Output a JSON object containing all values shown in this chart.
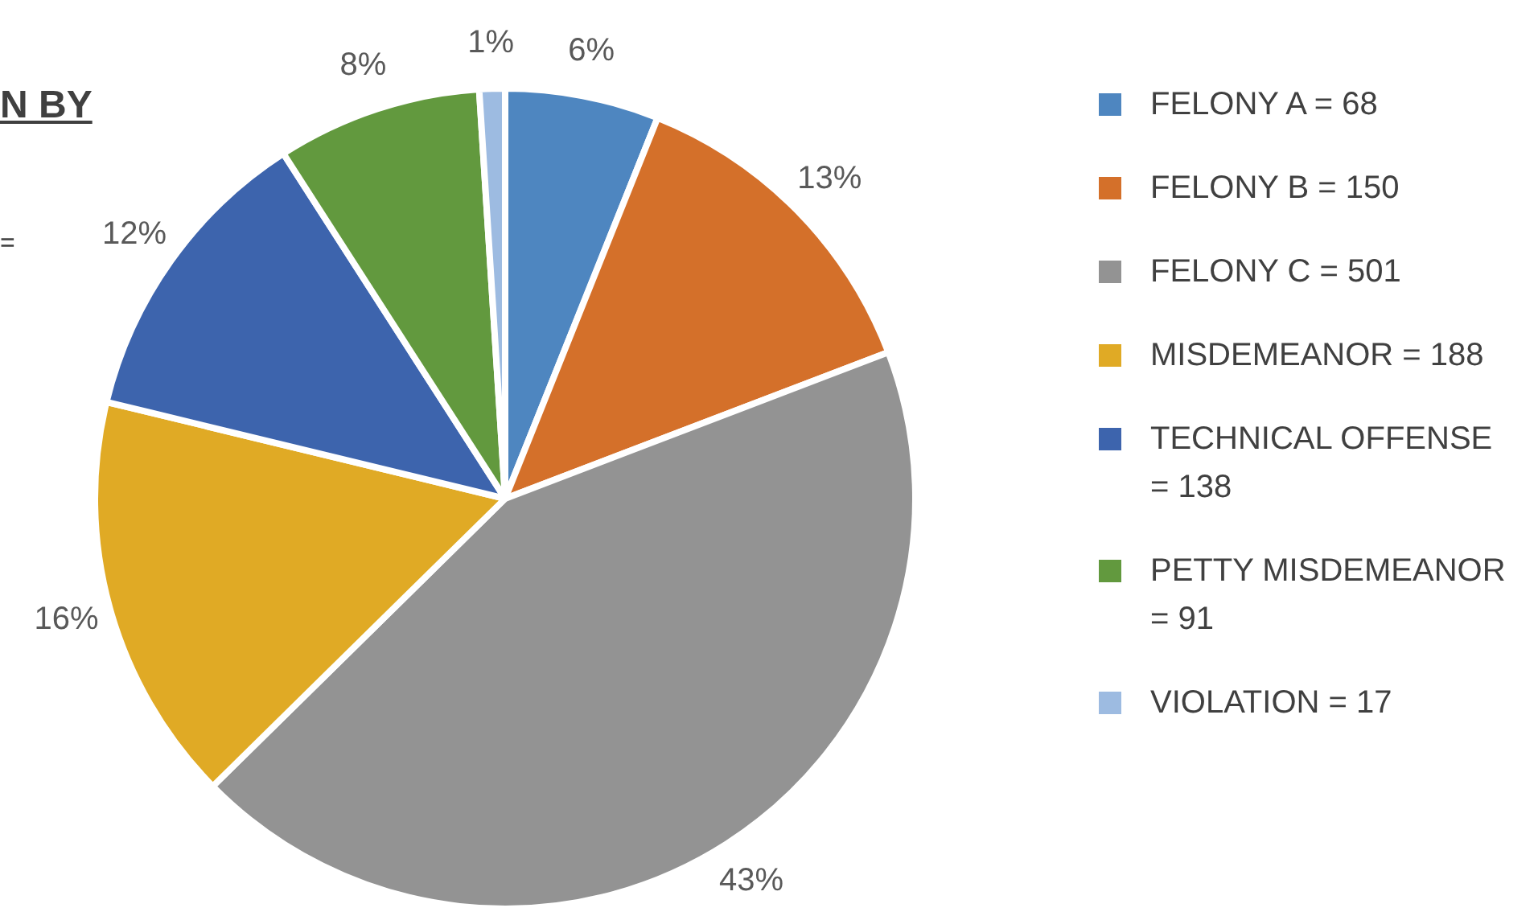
{
  "chart_data": {
    "type": "pie",
    "categories": [
      "FELONY A = 68",
      "FELONY B = 150",
      "FELONY C = 501",
      "MISDEMEANOR = 188",
      "TECHNICAL OFFENSE = 138",
      "PETTY MISDEMEANOR = 91",
      "VIOLATION = 17"
    ],
    "values": [
      6,
      13,
      43,
      16,
      12,
      8,
      1
    ],
    "value_labels": [
      "6%",
      "13%",
      "43%",
      "16%",
      "12%",
      "8%",
      "1%"
    ],
    "colors": [
      "#4e86c0",
      "#d4702a",
      "#939393",
      "#e0aa25",
      "#3d64ad",
      "#62993e",
      "#9dbbe1"
    ],
    "legend": "right",
    "annotations": [
      "N BY",
      "="
    ]
  }
}
